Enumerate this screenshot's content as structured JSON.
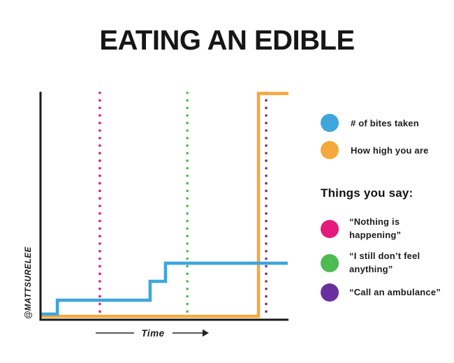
{
  "title": "EATING AN EDIBLE",
  "watermark": "@MATTSURELEE",
  "chart_data": {
    "type": "line",
    "title": "EATING AN EDIBLE",
    "xlabel": "Time",
    "ylabel": "",
    "x_range": [
      0,
      1
    ],
    "y_range": [
      0,
      1
    ],
    "grid": false,
    "legend_position": "right",
    "series": [
      {
        "name": "# of bites taken",
        "color": "#3EA6DB",
        "shape": "step",
        "points": [
          [
            0,
            0.025
          ],
          [
            0.068,
            0.025
          ],
          [
            0.068,
            0.086
          ],
          [
            0.442,
            0.086
          ],
          [
            0.442,
            0.169
          ],
          [
            0.504,
            0.169
          ],
          [
            0.504,
            0.249
          ],
          [
            0.997,
            0.249
          ]
        ]
      },
      {
        "name": "How high you are",
        "color": "#F5A93C",
        "shape": "step",
        "points": [
          [
            0,
            0.015
          ],
          [
            0.879,
            0.015
          ],
          [
            0.879,
            0.997
          ],
          [
            1.0,
            0.997
          ]
        ]
      }
    ],
    "annotations_title": "Things you say:",
    "annotations": [
      {
        "label": "“Nothing is happening”",
        "color": "#E6197D",
        "x": 0.239,
        "style": "dotted-vline"
      },
      {
        "label": "“I still don’t feel anything”",
        "color": "#4CBB51",
        "x": 0.592,
        "style": "dotted-vline"
      },
      {
        "label": "“Call an ambulance”",
        "color": "#6A2F9F",
        "x": 0.91,
        "style": "dotted-vline"
      }
    ]
  }
}
